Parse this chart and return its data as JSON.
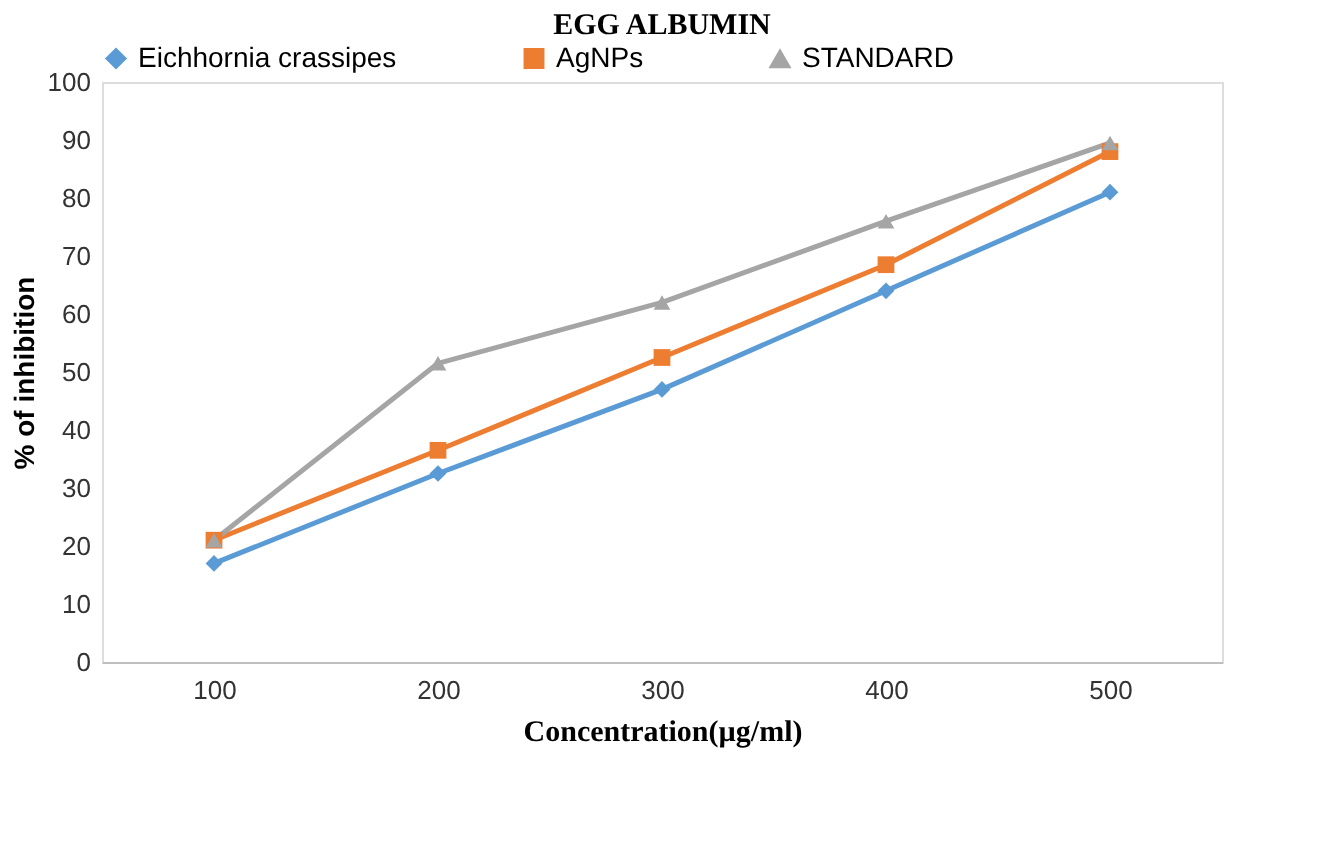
{
  "chart_data": {
    "type": "line",
    "title": "EGG ALBUMIN",
    "xlabel": "Concentration(µg/ml)",
    "ylabel": "% of inhibition",
    "categories": [
      "100",
      "200",
      "300",
      "400",
      "500"
    ],
    "series": [
      {
        "name": "Eichhornia crassipes",
        "color": "#5b9bd5",
        "marker": "diamond",
        "values": [
          17,
          32.5,
          47,
          64,
          81
        ]
      },
      {
        "name": "AgNPs",
        "color": "#ed7d31",
        "marker": "square",
        "values": [
          21,
          36.5,
          52.5,
          68.5,
          88
        ]
      },
      {
        "name": "STANDARD",
        "color": "#a5a5a5",
        "marker": "triangle",
        "values": [
          21,
          51.5,
          62,
          76,
          89.5
        ]
      }
    ],
    "ylim": [
      0,
      100
    ],
    "yticks": [
      0,
      10,
      20,
      30,
      40,
      50,
      60,
      70,
      80,
      90,
      100
    ],
    "grid": false,
    "legend": "top"
  }
}
